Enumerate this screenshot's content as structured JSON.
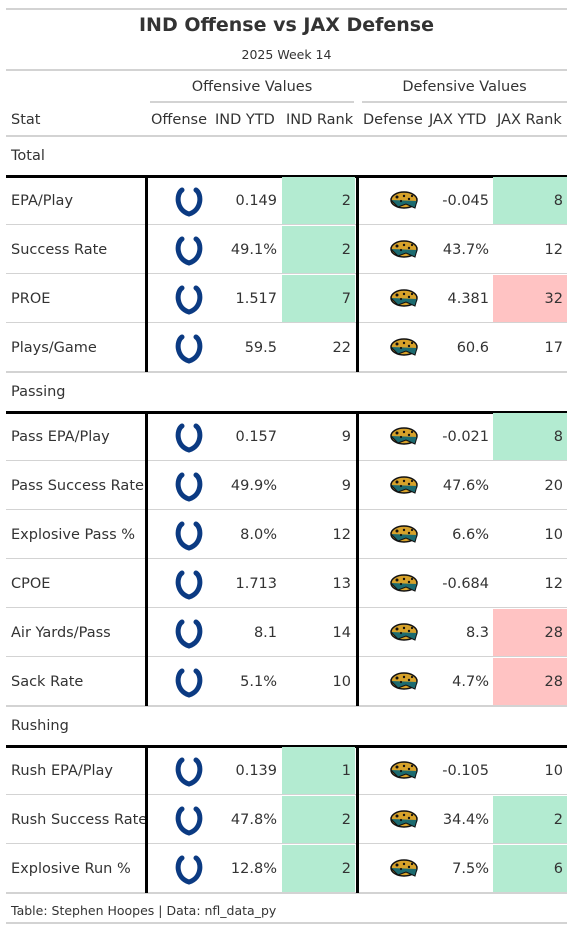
{
  "title": "IND Offense vs JAX Defense",
  "subtitle": "2025 Week 14",
  "spanners": {
    "offense": "Offensive Values",
    "defense": "Defensive Values"
  },
  "columns": {
    "stat": "Stat",
    "offense": "Offense",
    "ind_ytd": "IND YTD",
    "ind_rank": "IND Rank",
    "defense": "Defense",
    "jax_ytd": "JAX YTD",
    "jax_rank": "JAX Rank"
  },
  "logos": {
    "offense": "colts-horseshoe-logo",
    "defense": "jaguars-head-logo",
    "offense_color": "#0b3a82",
    "defense_color": "#d7a22a"
  },
  "colors": {
    "good": "#b3ebd1",
    "bad": "#ffc3c3"
  },
  "groups": [
    {
      "label": "Total",
      "rows": [
        {
          "stat": "EPA/Play",
          "ind_ytd": "0.149",
          "ind_rank": "2",
          "ind_rank_status": "good",
          "jax_ytd": "-0.045",
          "jax_rank": "8",
          "jax_rank_status": "good"
        },
        {
          "stat": "Success Rate",
          "ind_ytd": "49.1%",
          "ind_rank": "2",
          "ind_rank_status": "good",
          "jax_ytd": "43.7%",
          "jax_rank": "12",
          "jax_rank_status": "none"
        },
        {
          "stat": "PROE",
          "ind_ytd": "1.517",
          "ind_rank": "7",
          "ind_rank_status": "good",
          "jax_ytd": "4.381",
          "jax_rank": "32",
          "jax_rank_status": "bad"
        },
        {
          "stat": "Plays/Game",
          "ind_ytd": "59.5",
          "ind_rank": "22",
          "ind_rank_status": "none",
          "jax_ytd": "60.6",
          "jax_rank": "17",
          "jax_rank_status": "none"
        }
      ]
    },
    {
      "label": "Passing",
      "rows": [
        {
          "stat": "Pass EPA/Play",
          "ind_ytd": "0.157",
          "ind_rank": "9",
          "ind_rank_status": "none",
          "jax_ytd": "-0.021",
          "jax_rank": "8",
          "jax_rank_status": "good"
        },
        {
          "stat": "Pass Success Rate",
          "ind_ytd": "49.9%",
          "ind_rank": "9",
          "ind_rank_status": "none",
          "jax_ytd": "47.6%",
          "jax_rank": "20",
          "jax_rank_status": "none"
        },
        {
          "stat": "Explosive Pass %",
          "ind_ytd": "8.0%",
          "ind_rank": "12",
          "ind_rank_status": "none",
          "jax_ytd": "6.6%",
          "jax_rank": "10",
          "jax_rank_status": "none"
        },
        {
          "stat": "CPOE",
          "ind_ytd": "1.713",
          "ind_rank": "13",
          "ind_rank_status": "none",
          "jax_ytd": "-0.684",
          "jax_rank": "12",
          "jax_rank_status": "none"
        },
        {
          "stat": "Air Yards/Pass",
          "ind_ytd": "8.1",
          "ind_rank": "14",
          "ind_rank_status": "none",
          "jax_ytd": "8.3",
          "jax_rank": "28",
          "jax_rank_status": "bad"
        },
        {
          "stat": "Sack Rate",
          "ind_ytd": "5.1%",
          "ind_rank": "10",
          "ind_rank_status": "none",
          "jax_ytd": "4.7%",
          "jax_rank": "28",
          "jax_rank_status": "bad"
        }
      ]
    },
    {
      "label": "Rushing",
      "rows": [
        {
          "stat": "Rush EPA/Play",
          "ind_ytd": "0.139",
          "ind_rank": "1",
          "ind_rank_status": "good",
          "jax_ytd": "-0.105",
          "jax_rank": "10",
          "jax_rank_status": "none"
        },
        {
          "stat": "Rush Success Rate",
          "ind_ytd": "47.8%",
          "ind_rank": "2",
          "ind_rank_status": "good",
          "jax_ytd": "34.4%",
          "jax_rank": "2",
          "jax_rank_status": "good"
        },
        {
          "stat": "Explosive Run %",
          "ind_ytd": "12.8%",
          "ind_rank": "2",
          "ind_rank_status": "good",
          "jax_ytd": "7.5%",
          "jax_rank": "6",
          "jax_rank_status": "good"
        }
      ]
    }
  ],
  "source_note": "Table: Stephen Hoopes | Data: nfl_data_py"
}
